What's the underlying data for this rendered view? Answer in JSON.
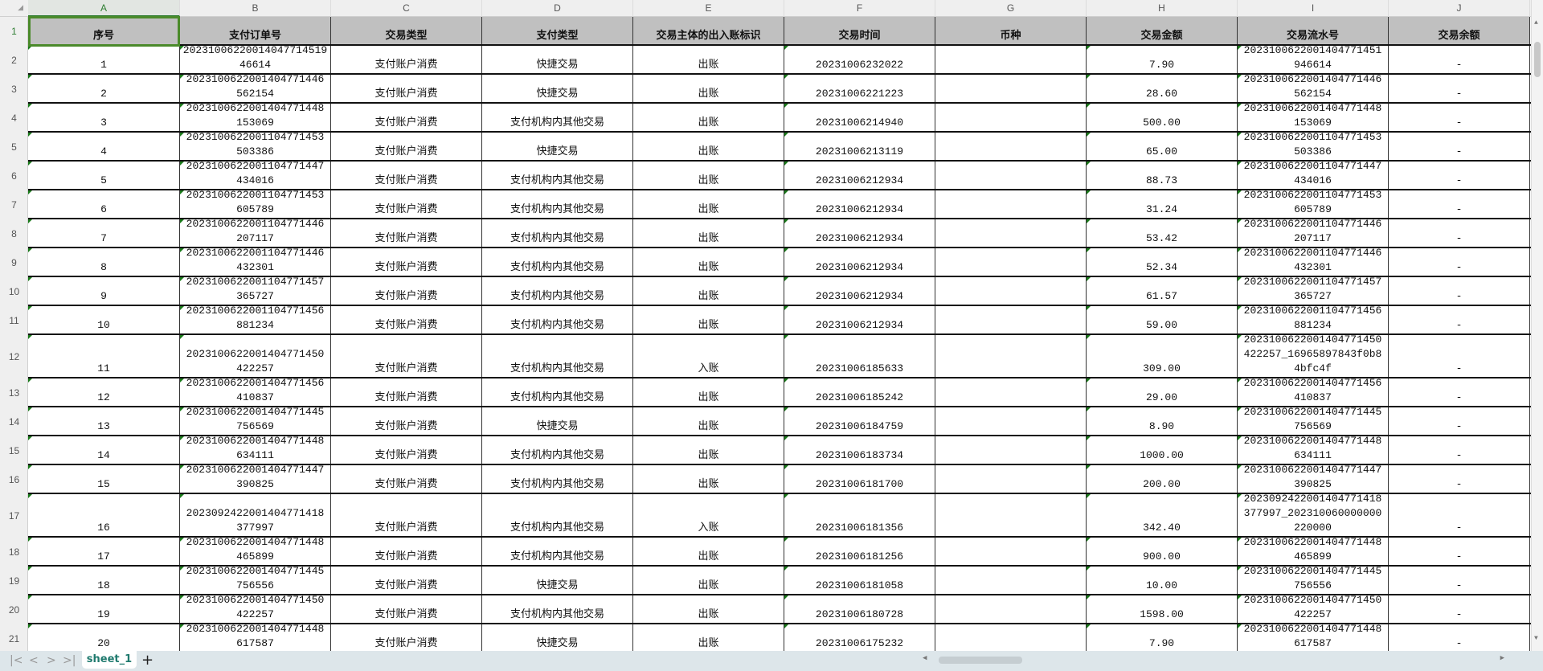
{
  "sheet": {
    "column_letters": [
      "A",
      "B",
      "C",
      "D",
      "E",
      "F",
      "G",
      "H",
      "I",
      "J"
    ],
    "selected_column": "A",
    "selected_row": "1",
    "headers": [
      "序号",
      "支付订单号",
      "交易类型",
      "支付类型",
      "交易主体的出入账标识",
      "交易时间",
      "币种",
      "交易金额",
      "交易流水号",
      "交易余额"
    ],
    "rows": [
      [
        "1",
        "20231006220014047714519 46614",
        "支付账户消费",
        "快捷交易",
        "出账",
        "20231006232022",
        "",
        "7.90",
        "2023100622001404771451\n946614",
        "-"
      ],
      [
        "2",
        "2023100622001404771446\n562154",
        "支付账户消费",
        "快捷交易",
        "出账",
        "20231006221223",
        "",
        "28.60",
        "2023100622001404771446\n562154",
        "-"
      ],
      [
        "3",
        "2023100622001404771448\n153069",
        "支付账户消费",
        "支付机构内其他交易",
        "出账",
        "20231006214940",
        "",
        "500.00",
        "2023100622001404771448\n153069",
        "-"
      ],
      [
        "4",
        "2023100622001104771453\n503386",
        "支付账户消费",
        "快捷交易",
        "出账",
        "20231006213119",
        "",
        "65.00",
        "2023100622001104771453\n503386",
        "-"
      ],
      [
        "5",
        "2023100622001104771447\n434016",
        "支付账户消费",
        "支付机构内其他交易",
        "出账",
        "20231006212934",
        "",
        "88.73",
        "2023100622001104771447\n434016",
        "-"
      ],
      [
        "6",
        "2023100622001104771453\n605789",
        "支付账户消费",
        "支付机构内其他交易",
        "出账",
        "20231006212934",
        "",
        "31.24",
        "2023100622001104771453\n605789",
        "-"
      ],
      [
        "7",
        "2023100622001104771446\n207117",
        "支付账户消费",
        "支付机构内其他交易",
        "出账",
        "20231006212934",
        "",
        "53.42",
        "2023100622001104771446\n207117",
        "-"
      ],
      [
        "8",
        "2023100622001104771446\n432301",
        "支付账户消费",
        "支付机构内其他交易",
        "出账",
        "20231006212934",
        "",
        "52.34",
        "2023100622001104771446\n432301",
        "-"
      ],
      [
        "9",
        "2023100622001104771457\n365727",
        "支付账户消费",
        "支付机构内其他交易",
        "出账",
        "20231006212934",
        "",
        "61.57",
        "2023100622001104771457\n365727",
        "-"
      ],
      [
        "10",
        "2023100622001104771456\n881234",
        "支付账户消费",
        "支付机构内其他交易",
        "出账",
        "20231006212934",
        "",
        "59.00",
        "2023100622001104771456\n881234",
        "-"
      ],
      [
        "11",
        "2023100622001404771450\n422257",
        "支付账户消费",
        "支付机构内其他交易",
        "入账",
        "20231006185633",
        "",
        "309.00",
        "2023100622001404771450\n422257_16965897843f0b8\n4bfc4f",
        "-"
      ],
      [
        "12",
        "2023100622001404771456\n410837",
        "支付账户消费",
        "支付机构内其他交易",
        "出账",
        "20231006185242",
        "",
        "29.00",
        "2023100622001404771456\n410837",
        "-"
      ],
      [
        "13",
        "2023100622001404771445\n756569",
        "支付账户消费",
        "快捷交易",
        "出账",
        "20231006184759",
        "",
        "8.90",
        "2023100622001404771445\n756569",
        "-"
      ],
      [
        "14",
        "2023100622001404771448\n634111",
        "支付账户消费",
        "支付机构内其他交易",
        "出账",
        "20231006183734",
        "",
        "1000.00",
        "2023100622001404771448\n634111",
        "-"
      ],
      [
        "15",
        "2023100622001404771447\n390825",
        "支付账户消费",
        "支付机构内其他交易",
        "出账",
        "20231006181700",
        "",
        "200.00",
        "2023100622001404771447\n390825",
        "-"
      ],
      [
        "16",
        "2023092422001404771418\n377997",
        "支付账户消费",
        "支付机构内其他交易",
        "入账",
        "20231006181356",
        "",
        "342.40",
        "2023092422001404771418\n377997_202310060000000\n220000",
        "-"
      ],
      [
        "17",
        "2023100622001404771448\n465899",
        "支付账户消费",
        "支付机构内其他交易",
        "出账",
        "20231006181256",
        "",
        "900.00",
        "2023100622001404771448\n465899",
        "-"
      ],
      [
        "18",
        "2023100622001404771445\n756556",
        "支付账户消费",
        "快捷交易",
        "出账",
        "20231006181058",
        "",
        "10.00",
        "2023100622001404771445\n756556",
        "-"
      ],
      [
        "19",
        "2023100622001404771450\n422257",
        "支付账户消费",
        "支付机构内其他交易",
        "出账",
        "20231006180728",
        "",
        "1598.00",
        "2023100622001404771450\n422257",
        "-"
      ],
      [
        "20",
        "2023100622001404771448\n617587",
        "支付账户消费",
        "快捷交易",
        "出账",
        "20231006175232",
        "",
        "7.90",
        "2023100622001404771448\n617587",
        "-"
      ]
    ]
  },
  "tabs": {
    "active": "sheet_1",
    "add_label": "+"
  },
  "nav_icons": [
    "first-sheet-icon",
    "prev-sheet-icon",
    "next-sheet-icon",
    "last-sheet-icon"
  ]
}
